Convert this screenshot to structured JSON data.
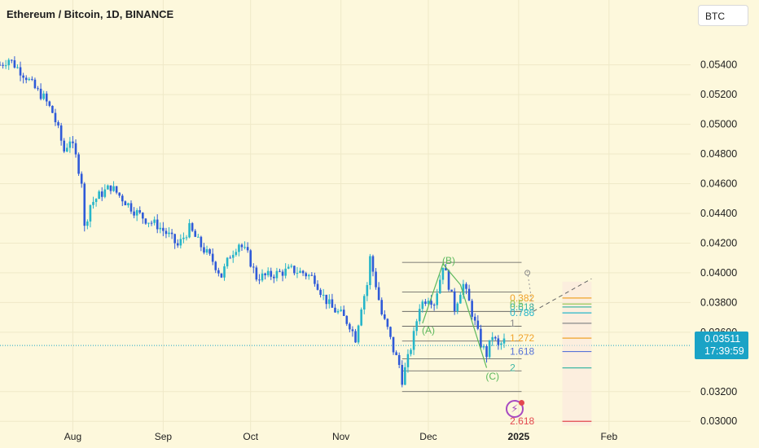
{
  "header": {
    "title": "Ethereum / Bitcoin, 1D, BINANCE",
    "currency": "BTC"
  },
  "last_price": {
    "value": "0.03511",
    "countdown": "17:39:59"
  },
  "colors": {
    "background": "#fdf8dc",
    "candle_up": "#26b5c9",
    "candle_down": "#2f5ad8",
    "price_line": "#1aa3c6",
    "fib_orange": "#f0a32a",
    "fib_teal": "#3fb7a4",
    "fib_blue": "#5874d8",
    "fib_red": "#e3484f",
    "wave_green": "#5cb85c"
  },
  "chart_data": {
    "type": "candlestick",
    "title": "Ethereum / Bitcoin, 1D, BINANCE",
    "y_axis": {
      "ticks": [
        "0.05400",
        "0.05200",
        "0.05000",
        "0.04800",
        "0.04600",
        "0.04400",
        "0.04200",
        "0.04000",
        "0.03800",
        "0.03600",
        "0.03200",
        "0.03000"
      ],
      "tick_values": [
        0.054,
        0.052,
        0.05,
        0.048,
        0.046,
        0.044,
        0.042,
        0.04,
        0.038,
        0.036,
        0.032,
        0.03
      ],
      "ylim": [
        0.0293,
        0.0576
      ]
    },
    "x_axis": {
      "ticks": [
        "Aug",
        "Sep",
        "Oct",
        "Nov",
        "Dec",
        "2025",
        "Feb"
      ],
      "tick_dates": [
        "2024-08-01",
        "2024-09-01",
        "2024-10-01",
        "2024-11-01",
        "2024-12-01",
        "2025-01-01",
        "2025-02-01"
      ],
      "xlim": [
        "2024-07-07",
        "2025-03-01"
      ]
    },
    "last_price": 0.03511,
    "series_close_path": [
      [
        "2024-07-07",
        0.054
      ],
      [
        "2024-07-10",
        0.0544
      ],
      [
        "2024-07-13",
        0.0538
      ],
      [
        "2024-07-16",
        0.0532
      ],
      [
        "2024-07-19",
        0.0524
      ],
      [
        "2024-07-22",
        0.0518
      ],
      [
        "2024-07-25",
        0.0508
      ],
      [
        "2024-07-27",
        0.0496
      ],
      [
        "2024-07-29",
        0.0482
      ],
      [
        "2024-07-31",
        0.049
      ],
      [
        "2024-08-02",
        0.0478
      ],
      [
        "2024-08-04",
        0.0462
      ],
      [
        "2024-08-05",
        0.043
      ],
      [
        "2024-08-07",
        0.0446
      ],
      [
        "2024-08-10",
        0.0452
      ],
      [
        "2024-08-14",
        0.0458
      ],
      [
        "2024-08-18",
        0.045
      ],
      [
        "2024-08-22",
        0.0442
      ],
      [
        "2024-08-26",
        0.0436
      ],
      [
        "2024-08-30",
        0.0432
      ],
      [
        "2024-09-03",
        0.0425
      ],
      [
        "2024-09-06",
        0.0418
      ],
      [
        "2024-09-10",
        0.043
      ],
      [
        "2024-09-14",
        0.0418
      ],
      [
        "2024-09-18",
        0.0408
      ],
      [
        "2024-09-21",
        0.0398
      ],
      [
        "2024-09-24",
        0.0412
      ],
      [
        "2024-09-27",
        0.042
      ],
      [
        "2024-09-30",
        0.0412
      ],
      [
        "2024-10-03",
        0.0397
      ],
      [
        "2024-10-07",
        0.0398
      ],
      [
        "2024-10-11",
        0.04
      ],
      [
        "2024-10-15",
        0.0402
      ],
      [
        "2024-10-19",
        0.04
      ],
      [
        "2024-10-23",
        0.0396
      ],
      [
        "2024-10-26",
        0.0384
      ],
      [
        "2024-10-29",
        0.0376
      ],
      [
        "2024-11-01",
        0.0372
      ],
      [
        "2024-11-04",
        0.0365
      ],
      [
        "2024-11-06",
        0.0356
      ],
      [
        "2024-11-08",
        0.0378
      ],
      [
        "2024-11-10",
        0.0392
      ],
      [
        "2024-11-11",
        0.041
      ],
      [
        "2024-11-13",
        0.0392
      ],
      [
        "2024-11-15",
        0.0372
      ],
      [
        "2024-11-17",
        0.0362
      ],
      [
        "2024-11-19",
        0.0348
      ],
      [
        "2024-11-21",
        0.0338
      ],
      [
        "2024-11-22",
        0.0328
      ],
      [
        "2024-11-24",
        0.0342
      ],
      [
        "2024-11-26",
        0.0358
      ],
      [
        "2024-11-28",
        0.0378
      ],
      [
        "2024-12-01",
        0.0384
      ],
      [
        "2024-12-03",
        0.038
      ],
      [
        "2024-12-05",
        0.0396
      ],
      [
        "2024-12-06",
        0.0406
      ],
      [
        "2024-12-08",
        0.0392
      ],
      [
        "2024-12-10",
        0.0376
      ],
      [
        "2024-12-12",
        0.0388
      ],
      [
        "2024-12-13",
        0.0392
      ],
      [
        "2024-12-15",
        0.038
      ],
      [
        "2024-12-17",
        0.0366
      ],
      [
        "2024-12-19",
        0.0352
      ],
      [
        "2024-12-21",
        0.0345
      ],
      [
        "2024-12-23",
        0.0358
      ],
      [
        "2024-12-25",
        0.035
      ],
      [
        "2024-12-27",
        0.0354
      ],
      [
        "2024-12-28",
        0.03511
      ]
    ],
    "elliott_waves": [
      {
        "label": "(A)",
        "date": "2024-12-01",
        "price": 0.036
      },
      {
        "label": "(B)",
        "date": "2024-12-06",
        "price": 0.0407
      },
      {
        "label": "(C)",
        "date": "2024-12-22",
        "price": 0.0333
      }
    ],
    "fib_levels": [
      {
        "label": "0.382",
        "value": 0.0383,
        "color": "#f0a32a"
      },
      {
        "label": "0.5",
        "value": 0.0379,
        "color": "#8bc34a"
      },
      {
        "label": "0.618",
        "value": 0.0377,
        "color": "#3fb7a4"
      },
      {
        "label": "0.786",
        "value": 0.0373,
        "color": "#26b5c9"
      },
      {
        "label": "1",
        "value": 0.0366,
        "color": "#888888"
      },
      {
        "label": "1.272",
        "value": 0.0356,
        "color": "#f0a32a"
      },
      {
        "label": "1.618",
        "value": 0.0347,
        "color": "#5874d8"
      },
      {
        "label": "2",
        "value": 0.0336,
        "color": "#3fb7a4"
      },
      {
        "label": "2.618",
        "value": 0.03,
        "color": "#e3484f"
      }
    ],
    "grid": true
  }
}
